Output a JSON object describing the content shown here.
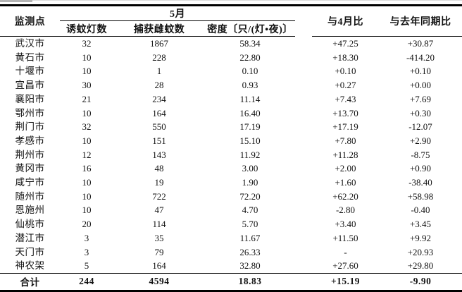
{
  "header": {
    "monitoring_point": "监测点",
    "may_group": "5月",
    "lamp_count": "诱蚊灯数",
    "female_mosquito_count": "捕获雌蚊数",
    "density": "密度〔只/(灯•夜)〕",
    "vs_april": "与4月比",
    "vs_same_period_last_year": "与去年同期比"
  },
  "rows": [
    {
      "site": "武汉市",
      "lamps": "32",
      "mosquitoes": "1867",
      "density": "58.34",
      "vs_april": "+47.25",
      "vs_last_year": "+30.87"
    },
    {
      "site": "黄石市",
      "lamps": "10",
      "mosquitoes": "228",
      "density": "22.80",
      "vs_april": "+18.30",
      "vs_last_year": "-414.20"
    },
    {
      "site": "十堰市",
      "lamps": "10",
      "mosquitoes": "1",
      "density": "0.10",
      "vs_april": "+0.10",
      "vs_last_year": "+0.10"
    },
    {
      "site": "宜昌市",
      "lamps": "30",
      "mosquitoes": "28",
      "density": "0.93",
      "vs_april": "+0.27",
      "vs_last_year": "+0.00"
    },
    {
      "site": "襄阳市",
      "lamps": "21",
      "mosquitoes": "234",
      "density": "11.14",
      "vs_april": "+7.43",
      "vs_last_year": "+7.69"
    },
    {
      "site": "鄂州市",
      "lamps": "10",
      "mosquitoes": "164",
      "density": "16.40",
      "vs_april": "+13.70",
      "vs_last_year": "+0.30"
    },
    {
      "site": "荆门市",
      "lamps": "32",
      "mosquitoes": "550",
      "density": "17.19",
      "vs_april": "+17.19",
      "vs_last_year": "-12.07"
    },
    {
      "site": "孝感市",
      "lamps": "10",
      "mosquitoes": "151",
      "density": "15.10",
      "vs_april": "+7.80",
      "vs_last_year": "+2.90"
    },
    {
      "site": "荆州市",
      "lamps": "12",
      "mosquitoes": "143",
      "density": "11.92",
      "vs_april": "+11.28",
      "vs_last_year": "-8.75"
    },
    {
      "site": "黄冈市",
      "lamps": "16",
      "mosquitoes": "48",
      "density": "3.00",
      "vs_april": "+2.00",
      "vs_last_year": "+0.90"
    },
    {
      "site": "咸宁市",
      "lamps": "10",
      "mosquitoes": "19",
      "density": "1.90",
      "vs_april": "+1.60",
      "vs_last_year": "-38.40"
    },
    {
      "site": "随州市",
      "lamps": "10",
      "mosquitoes": "722",
      "density": "72.20",
      "vs_april": "+62.20",
      "vs_last_year": "+58.98"
    },
    {
      "site": "恩施州",
      "lamps": "10",
      "mosquitoes": "47",
      "density": "4.70",
      "vs_april": "-2.80",
      "vs_last_year": "-0.40"
    },
    {
      "site": "仙桃市",
      "lamps": "20",
      "mosquitoes": "114",
      "density": "5.70",
      "vs_april": "+3.40",
      "vs_last_year": "+3.45"
    },
    {
      "site": "潜江市",
      "lamps": "3",
      "mosquitoes": "35",
      "density": "11.67",
      "vs_april": "+11.50",
      "vs_last_year": "+9.92"
    },
    {
      "site": "天门市",
      "lamps": "3",
      "mosquitoes": "79",
      "density": "26.33",
      "vs_april": "-",
      "vs_last_year": "+20.93"
    },
    {
      "site": "神农架",
      "lamps": "5",
      "mosquitoes": "164",
      "density": "32.80",
      "vs_april": "+27.60",
      "vs_last_year": "+29.80"
    }
  ],
  "total_row": {
    "site": "合计",
    "lamps": "244",
    "mosquitoes": "4594",
    "density": "18.83",
    "vs_april": "+15.19",
    "vs_last_year": "-9.90"
  },
  "colors": {
    "text": "#121212",
    "rule": "#000000",
    "background": "#ffffff",
    "artifact_gray": "#b5b5b5"
  }
}
